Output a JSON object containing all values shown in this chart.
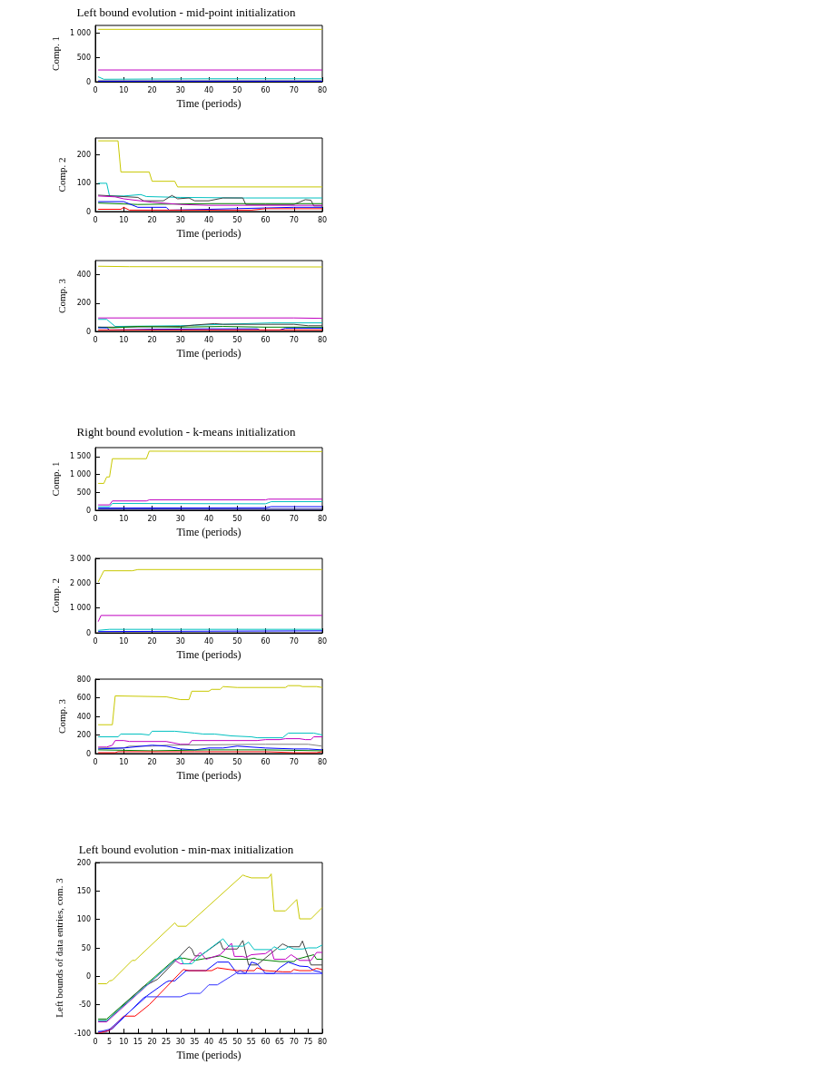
{
  "chart_data": [
    {
      "type": "line",
      "title": "Left bound evolution - mid-point initialization",
      "xlabel": "Time (periods)",
      "ylabel": "Comp. 1",
      "xlim": [
        0,
        80
      ],
      "xticks": [
        0,
        10,
        20,
        30,
        40,
        50,
        60,
        70,
        80
      ],
      "ylim": [
        0,
        1150
      ],
      "yticks": [
        0,
        500,
        {
          "value": 1000,
          "label": "1 000"
        }
      ],
      "grid": false,
      "marker": "none",
      "series": [
        {
          "color": "#c8c800",
          "x": [
            1,
            80
          ],
          "values": [
            1070,
            1070
          ]
        },
        {
          "color": "#c000c0",
          "x": [
            1,
            80
          ],
          "values": [
            240,
            240
          ]
        },
        {
          "color": "#00c0c0",
          "x": [
            1,
            3,
            40,
            80
          ],
          "values": [
            100,
            50,
            60,
            60
          ]
        },
        {
          "color": "#a0a0a0",
          "x": [
            1,
            80
          ],
          "values": [
            30,
            30
          ]
        },
        {
          "color": "#0000ff",
          "x": [
            1,
            80
          ],
          "values": [
            10,
            10
          ]
        }
      ]
    },
    {
      "type": "line",
      "xlabel": "Time (periods)",
      "ylabel": "Comp. 2",
      "xlim": [
        0,
        80
      ],
      "xticks": [
        0,
        10,
        20,
        30,
        40,
        50,
        60,
        70,
        80
      ],
      "ylim": [
        0,
        260
      ],
      "yticks": [
        0,
        100,
        200
      ],
      "grid": false,
      "marker": "none",
      "series": [
        {
          "color": "#c8c800",
          "x": [
            1,
            8,
            9,
            19,
            20,
            28,
            29,
            80
          ],
          "values": [
            250,
            250,
            140,
            140,
            107,
            107,
            87,
            87
          ]
        },
        {
          "color": "#00c0c0",
          "x": [
            1,
            4,
            5,
            10,
            16,
            18,
            30,
            52,
            53,
            80
          ],
          "values": [
            100,
            100,
            55,
            55,
            60,
            53,
            50,
            48,
            48,
            48
          ]
        },
        {
          "color": "#404040",
          "x": [
            1,
            15,
            17,
            24,
            27,
            29,
            33,
            35,
            40,
            45,
            52,
            53,
            70,
            74,
            76,
            77,
            80
          ],
          "values": [
            58,
            50,
            38,
            38,
            57,
            45,
            48,
            38,
            38,
            48,
            48,
            25,
            25,
            42,
            40,
            20,
            20
          ]
        },
        {
          "color": "#008000",
          "x": [
            1,
            15,
            40,
            60,
            80
          ],
          "values": [
            30,
            25,
            28,
            28,
            28
          ]
        },
        {
          "color": "#c000c0",
          "x": [
            1,
            7,
            10,
            20,
            30,
            40,
            80
          ],
          "values": [
            55,
            52,
            45,
            33,
            25,
            22,
            22
          ]
        },
        {
          "color": "#0000ff",
          "x": [
            1,
            10,
            15,
            25,
            26,
            40,
            70,
            80
          ],
          "values": [
            35,
            35,
            15,
            15,
            5,
            8,
            15,
            15
          ]
        },
        {
          "color": "#ff0000",
          "x": [
            1,
            9,
            10,
            12,
            55,
            60,
            80
          ],
          "values": [
            8,
            8,
            15,
            5,
            5,
            10,
            10
          ]
        }
      ]
    },
    {
      "type": "line",
      "xlabel": "Time (periods)",
      "ylabel": "Comp. 3",
      "xlim": [
        0,
        80
      ],
      "xticks": [
        0,
        10,
        20,
        30,
        40,
        50,
        60,
        70,
        80
      ],
      "ylim": [
        0,
        500
      ],
      "yticks": [
        0,
        200,
        400
      ],
      "grid": false,
      "marker": "none",
      "series": [
        {
          "color": "#c8c800",
          "x": [
            1,
            12,
            80
          ],
          "values": [
            460,
            457,
            455
          ]
        },
        {
          "color": "#c000c0",
          "x": [
            1,
            70,
            80
          ],
          "values": [
            95,
            95,
            92
          ]
        },
        {
          "color": "#00c0c0",
          "x": [
            1,
            4,
            7,
            30,
            45,
            62,
            80
          ],
          "values": [
            85,
            85,
            35,
            40,
            50,
            60,
            60
          ]
        },
        {
          "color": "#404040",
          "x": [
            1,
            8,
            30,
            35,
            42,
            45,
            70,
            75,
            80
          ],
          "values": [
            30,
            30,
            35,
            45,
            55,
            50,
            50,
            40,
            40
          ]
        },
        {
          "color": "#008000",
          "x": [
            1,
            6,
            15,
            30,
            45,
            60,
            80
          ],
          "values": [
            30,
            25,
            35,
            30,
            35,
            30,
            30
          ]
        },
        {
          "color": "#0000ff",
          "x": [
            1,
            4,
            5,
            20,
            40,
            57,
            58,
            65,
            67,
            80
          ],
          "values": [
            25,
            25,
            10,
            15,
            18,
            18,
            10,
            10,
            22,
            22
          ]
        },
        {
          "color": "#ff0000",
          "x": [
            1,
            80
          ],
          "values": [
            10,
            10
          ]
        }
      ]
    },
    {
      "type": "line",
      "title": "Right bound evolution - k-means initialization",
      "xlabel": "Time (periods)",
      "ylabel": "Comp. 1",
      "xlim": [
        0,
        80
      ],
      "xticks": [
        0,
        10,
        20,
        30,
        40,
        50,
        60,
        70,
        80
      ],
      "ylim": [
        0,
        1750
      ],
      "yticks": [
        0,
        500,
        {
          "value": 1000,
          "label": "1 000"
        },
        {
          "value": 1500,
          "label": "1 500"
        }
      ],
      "grid": false,
      "marker": "none",
      "series": [
        {
          "color": "#c8c800",
          "x": [
            1,
            3,
            4,
            5,
            6,
            18,
            19,
            80
          ],
          "values": [
            750,
            750,
            930,
            930,
            1440,
            1440,
            1650,
            1640
          ]
        },
        {
          "color": "#c000c0",
          "x": [
            1,
            5,
            6,
            18,
            19,
            60,
            61,
            80
          ],
          "values": [
            150,
            150,
            260,
            260,
            290,
            290,
            310,
            310
          ]
        },
        {
          "color": "#00c0c0",
          "x": [
            1,
            5,
            6,
            60,
            62,
            80
          ],
          "values": [
            100,
            100,
            190,
            180,
            240,
            240
          ]
        },
        {
          "color": "#0000ff",
          "x": [
            1,
            60,
            62,
            80
          ],
          "values": [
            60,
            70,
            100,
            100
          ]
        },
        {
          "color": "#000080",
          "x": [
            1,
            80
          ],
          "values": [
            30,
            30
          ]
        }
      ]
    },
    {
      "type": "line",
      "xlabel": "Time (periods)",
      "ylabel": "Comp. 2",
      "xlim": [
        0,
        80
      ],
      "xticks": [
        0,
        10,
        20,
        30,
        40,
        50,
        60,
        70,
        80
      ],
      "ylim": [
        0,
        3000
      ],
      "yticks": [
        0,
        {
          "value": 1000,
          "label": "1 000"
        },
        {
          "value": 2000,
          "label": "2 000"
        },
        {
          "value": 3000,
          "label": "3 000"
        }
      ],
      "grid": false,
      "marker": "none",
      "series": [
        {
          "color": "#c8c800",
          "x": [
            1,
            3,
            13,
            15,
            80
          ],
          "values": [
            2050,
            2500,
            2500,
            2550,
            2550
          ]
        },
        {
          "color": "#c000c0",
          "x": [
            1,
            2,
            80
          ],
          "values": [
            450,
            700,
            700
          ]
        },
        {
          "color": "#00c0c0",
          "x": [
            1,
            5,
            80
          ],
          "values": [
            100,
            140,
            140
          ]
        },
        {
          "color": "#0000ff",
          "x": [
            1,
            80
          ],
          "values": [
            50,
            80
          ]
        }
      ]
    },
    {
      "type": "line",
      "xlabel": "Time (periods)",
      "ylabel": "Comp. 3",
      "xlim": [
        0,
        80
      ],
      "xticks": [
        0,
        10,
        20,
        30,
        40,
        50,
        60,
        70,
        80
      ],
      "ylim": [
        0,
        800
      ],
      "yticks": [
        0,
        200,
        400,
        600,
        800
      ],
      "grid": false,
      "marker": "none",
      "series": [
        {
          "color": "#c8c800",
          "x": [
            1,
            6,
            7,
            25,
            30,
            33,
            34,
            40,
            41,
            44,
            45,
            50,
            67,
            68,
            72,
            73,
            78,
            80
          ],
          "values": [
            310,
            310,
            620,
            610,
            580,
            580,
            670,
            670,
            690,
            690,
            720,
            710,
            710,
            730,
            730,
            720,
            720,
            710
          ]
        },
        {
          "color": "#00c0c0",
          "x": [
            1,
            8,
            9,
            16,
            19,
            20,
            28,
            35,
            38,
            42,
            48,
            55,
            57,
            66,
            68,
            77,
            80
          ],
          "values": [
            180,
            180,
            210,
            210,
            200,
            240,
            240,
            220,
            210,
            210,
            190,
            180,
            170,
            170,
            220,
            220,
            200
          ]
        },
        {
          "color": "#c000c0",
          "x": [
            1,
            4,
            6,
            7,
            10,
            12,
            25,
            30,
            33,
            34,
            57,
            60,
            65,
            67,
            72,
            74,
            76,
            77,
            80
          ],
          "values": [
            70,
            70,
            90,
            140,
            140,
            130,
            130,
            100,
            100,
            140,
            140,
            150,
            150,
            160,
            160,
            150,
            150,
            180,
            180
          ]
        },
        {
          "color": "#808080",
          "x": [
            1,
            10,
            12,
            20,
            25,
            60,
            75,
            80
          ],
          "values": [
            60,
            60,
            80,
            80,
            90,
            100,
            100,
            80
          ]
        },
        {
          "color": "#0000ff",
          "x": [
            1,
            10,
            20,
            25,
            30,
            35,
            40,
            45,
            50,
            60,
            70,
            75,
            80
          ],
          "values": [
            50,
            60,
            90,
            80,
            50,
            40,
            60,
            60,
            80,
            60,
            50,
            50,
            40
          ]
        },
        {
          "color": "#008000",
          "x": [
            1,
            20,
            40,
            60,
            80
          ],
          "values": [
            40,
            30,
            40,
            40,
            30
          ]
        },
        {
          "color": "#ff0000",
          "x": [
            1,
            7,
            8,
            20,
            35,
            50,
            60,
            70,
            78,
            80
          ],
          "values": [
            10,
            10,
            20,
            20,
            20,
            20,
            20,
            10,
            10,
            20
          ]
        }
      ]
    },
    {
      "type": "line",
      "title": "Left bound evolution - min-max initialization",
      "xlabel": "Time (periods)",
      "ylabel": "Left bounds of data entries, com. 3",
      "xlim": [
        0,
        80
      ],
      "xticks": [
        0,
        5,
        10,
        15,
        20,
        25,
        30,
        35,
        40,
        45,
        50,
        55,
        60,
        65,
        70,
        75,
        80
      ],
      "ylim": [
        -100,
        200
      ],
      "yticks": [
        -100,
        -50,
        0,
        50,
        100,
        150,
        200
      ],
      "grid": false,
      "marker": "none",
      "series": [
        {
          "color": "#c8c800",
          "x": [
            1,
            4,
            5,
            6,
            13,
            14,
            28,
            29,
            32,
            52,
            53,
            55,
            61,
            62,
            63,
            67,
            71,
            72,
            76,
            80
          ],
          "values": [
            -13,
            -13,
            -8,
            -7,
            28,
            28,
            94,
            88,
            88,
            178,
            176,
            173,
            173,
            180,
            115,
            115,
            135,
            101,
            101,
            121
          ]
        },
        {
          "color": "#008000",
          "x": [
            1,
            4,
            28,
            31,
            35,
            44,
            48,
            54,
            56,
            57,
            65,
            70,
            71,
            77,
            78,
            80
          ],
          "values": [
            -75,
            -75,
            30,
            32,
            28,
            36,
            30,
            30,
            32,
            30,
            26,
            26,
            30,
            38,
            30,
            30
          ]
        },
        {
          "color": "#404040",
          "x": [
            1,
            4,
            17,
            22,
            33,
            34,
            35,
            37,
            44,
            45,
            50,
            52,
            54,
            57,
            66,
            68,
            72,
            73,
            76,
            80
          ],
          "values": [
            -78,
            -78,
            -18,
            -5,
            52,
            48,
            36,
            36,
            61,
            48,
            48,
            63,
            20,
            20,
            57,
            52,
            52,
            62,
            20,
            20
          ]
        },
        {
          "color": "#c000c0",
          "x": [
            1,
            4,
            28,
            30,
            33,
            37,
            39,
            44,
            48,
            49,
            52,
            53,
            55,
            60,
            62,
            63,
            67,
            69,
            72,
            76,
            78,
            80
          ],
          "values": [
            -80,
            -80,
            28,
            22,
            22,
            42,
            30,
            38,
            58,
            35,
            35,
            33,
            38,
            40,
            47,
            30,
            30,
            38,
            28,
            28,
            42,
            42
          ]
        },
        {
          "color": "#00c0c0",
          "x": [
            1,
            4,
            28,
            30,
            31,
            34,
            37,
            45,
            47,
            52,
            54,
            56,
            62,
            63,
            65,
            67,
            68,
            70,
            73,
            75,
            78,
            80
          ],
          "values": [
            -78,
            -78,
            28,
            35,
            22,
            22,
            36,
            66,
            53,
            53,
            60,
            47,
            47,
            52,
            47,
            48,
            52,
            48,
            48,
            50,
            50,
            55
          ]
        },
        {
          "color": "#0000ff",
          "x": [
            1,
            4,
            6,
            17,
            18,
            25,
            26,
            28,
            32,
            39,
            43,
            47,
            50,
            53,
            55,
            57,
            60,
            63,
            65,
            68,
            72,
            75,
            77,
            79,
            80
          ],
          "values": [
            -97,
            -97,
            -92,
            -38,
            -35,
            -10,
            -8,
            -8,
            10,
            10,
            25,
            25,
            5,
            5,
            25,
            22,
            5,
            5,
            15,
            25,
            18,
            17,
            10,
            8,
            5
          ]
        },
        {
          "color": "#ff0000",
          "x": [
            1,
            5,
            10,
            14,
            19,
            31,
            33,
            41,
            43,
            50,
            56,
            57,
            60,
            66,
            69,
            70,
            72,
            76,
            78,
            80
          ],
          "values": [
            -100,
            -95,
            -70,
            -70,
            -50,
            12,
            10,
            10,
            15,
            10,
            10,
            15,
            10,
            8,
            8,
            12,
            10,
            10,
            14,
            12
          ]
        },
        {
          "color": "#3030ff",
          "x": [
            1,
            5,
            8,
            18,
            24,
            30,
            33,
            37,
            40,
            43,
            51,
            53,
            60,
            70,
            80
          ],
          "values": [
            -98,
            -93,
            -80,
            -36,
            -36,
            -36,
            -30,
            -30,
            -15,
            -15,
            10,
            5,
            5,
            5,
            5
          ]
        }
      ]
    }
  ]
}
